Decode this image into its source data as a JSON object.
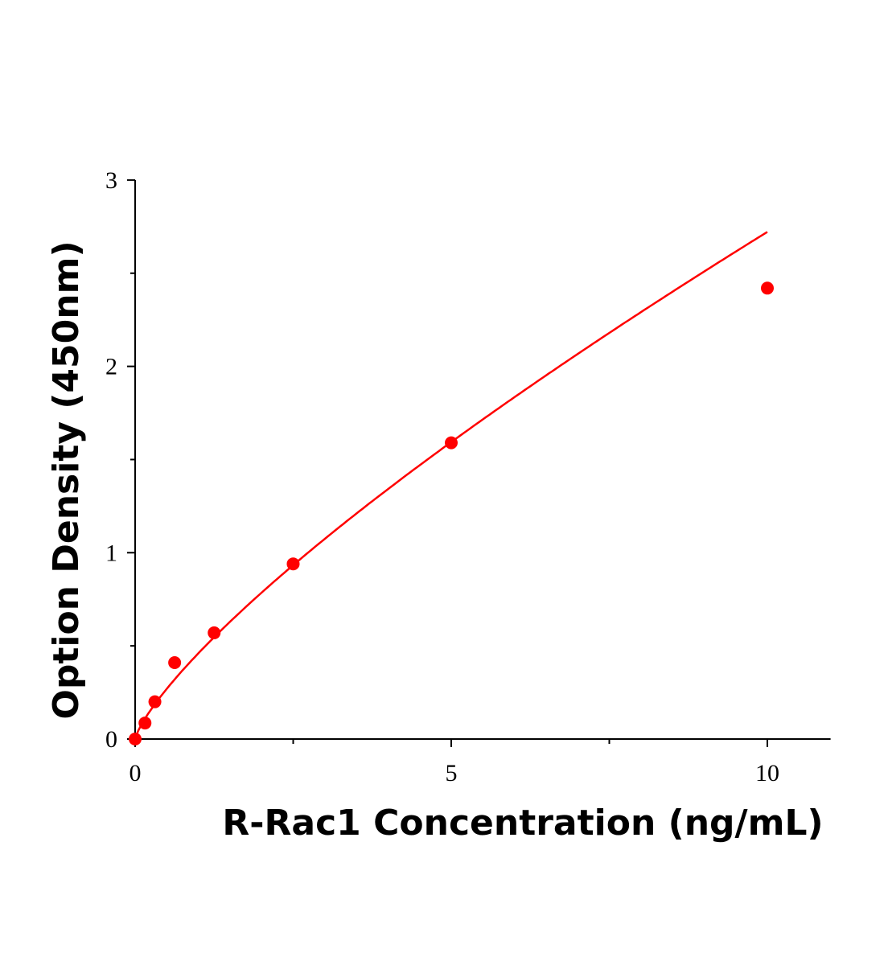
{
  "chart_data": {
    "type": "scatter",
    "xlabel": "R-Rac1 Concentration (ng/mL)",
    "ylabel": "Option Density (450nm)",
    "xlim": [
      0,
      11
    ],
    "ylim": [
      0,
      3
    ],
    "x_ticks": [
      0,
      5,
      10
    ],
    "y_ticks": [
      0,
      1,
      2,
      3
    ],
    "x_minor_ticks": [
      2.5,
      7.5
    ],
    "y_minor_ticks": [
      0.5,
      1.5,
      2.5
    ],
    "grid": false,
    "series": [
      {
        "x": [
          0,
          0.156,
          0.3125,
          0.625,
          1.25,
          2.5,
          5,
          10
        ],
        "y": [
          0,
          0.086,
          0.2,
          0.41,
          0.57,
          0.94,
          1.59,
          2.42
        ],
        "color": "#ff0000",
        "fit_curve": true
      }
    ]
  }
}
